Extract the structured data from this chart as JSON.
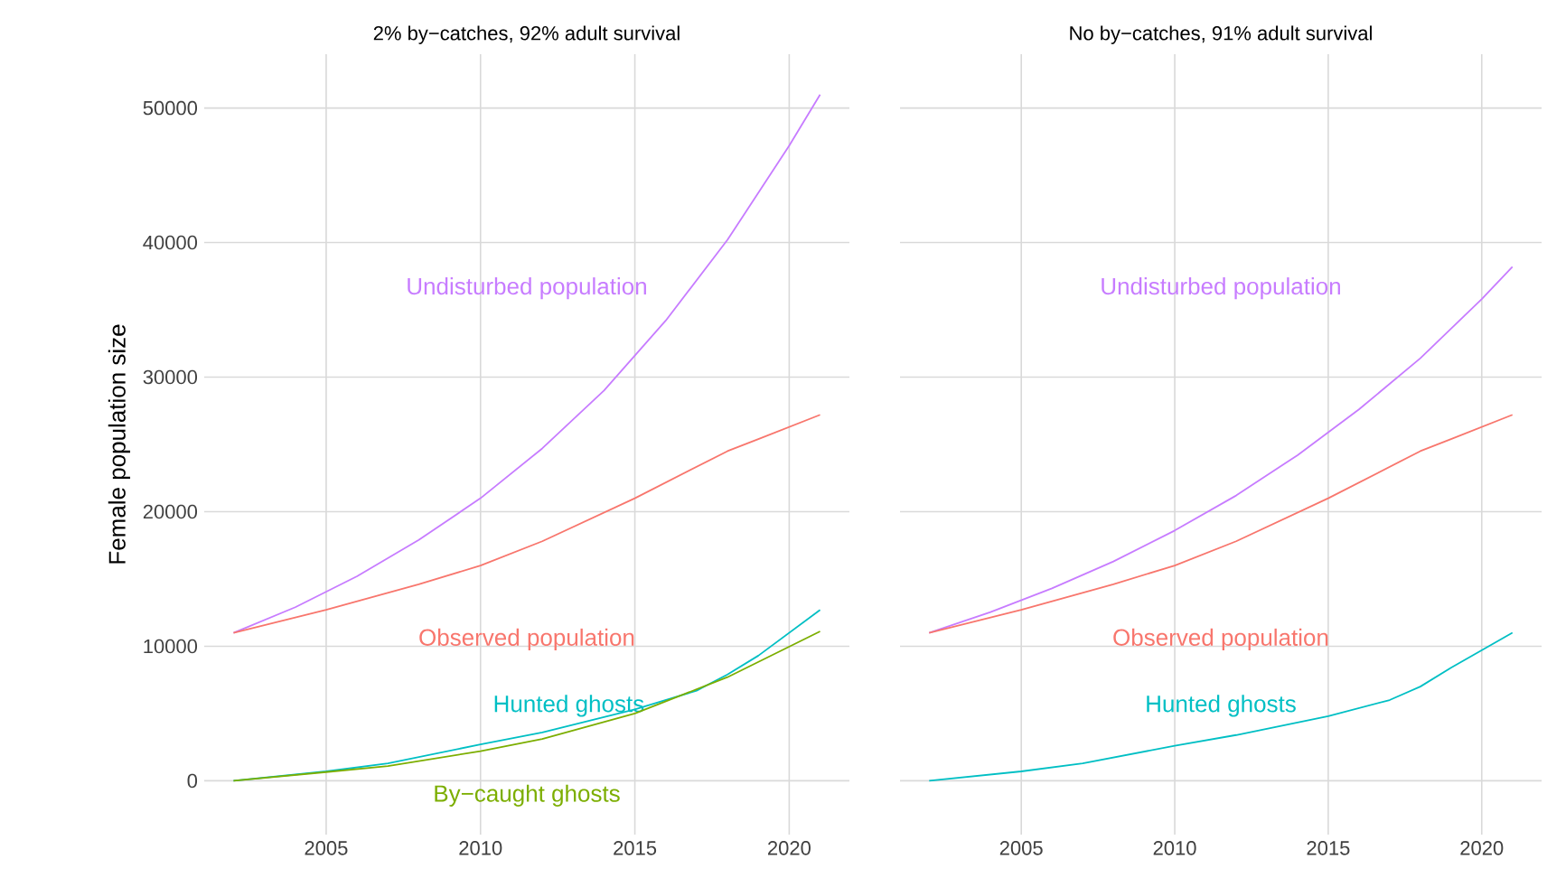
{
  "chart_data": [
    {
      "type": "line",
      "title": "2% by−catches, 92% adult survival",
      "ylabel": "Female population size",
      "xlim": [
        2001.05,
        2021.95
      ],
      "ylim": [
        -4000,
        54000
      ],
      "xticks": [
        2005,
        2010,
        2015,
        2020
      ],
      "yticks": [
        0,
        10000,
        20000,
        30000,
        40000,
        50000
      ],
      "grid": true,
      "series": [
        {
          "name": "Undisturbed population",
          "color": "#c77cff",
          "x": [
            2002,
            2004,
            2006,
            2008,
            2010,
            2012,
            2014,
            2016,
            2018,
            2020,
            2021
          ],
          "values": [
            11000,
            12900,
            15200,
            17900,
            21000,
            24700,
            29000,
            34200,
            40200,
            47200,
            51000
          ]
        },
        {
          "name": "Observed population",
          "color": "#f8766d",
          "x": [
            2002,
            2005,
            2008,
            2010,
            2012,
            2015,
            2018,
            2019,
            2021
          ],
          "values": [
            11000,
            12700,
            14600,
            16000,
            17800,
            21000,
            24500,
            25400,
            27200
          ]
        },
        {
          "name": "Hunted ghosts",
          "color": "#00bfc4",
          "x": [
            2002,
            2005,
            2007,
            2010,
            2012,
            2015,
            2017,
            2018,
            2019,
            2021
          ],
          "values": [
            0,
            700,
            1300,
            2700,
            3600,
            5300,
            6700,
            7900,
            9300,
            12700
          ]
        },
        {
          "name": "By−caught ghosts",
          "color": "#7cae00",
          "x": [
            2002,
            2005,
            2007,
            2010,
            2012,
            2015,
            2018,
            2021
          ],
          "values": [
            0,
            650,
            1100,
            2200,
            3100,
            5000,
            7700,
            11100
          ]
        }
      ]
    },
    {
      "type": "line",
      "title": "No by−catches, 91% adult survival",
      "xlim": [
        2001.05,
        2021.95
      ],
      "ylim": [
        -4000,
        54000
      ],
      "xticks": [
        2005,
        2010,
        2015,
        2020
      ],
      "yticks": [
        0,
        10000,
        20000,
        30000,
        40000,
        50000
      ],
      "grid": true,
      "tick_labels": "x",
      "series": [
        {
          "name": "Undisturbed population",
          "color": "#c77cff",
          "x": [
            2002,
            2004,
            2006,
            2008,
            2010,
            2012,
            2014,
            2016,
            2018,
            2020,
            2021
          ],
          "values": [
            11000,
            12540,
            14300,
            16300,
            18600,
            21200,
            24200,
            27600,
            31400,
            35800,
            38200
          ]
        },
        {
          "name": "Observed population",
          "color": "#f8766d",
          "x": [
            2002,
            2005,
            2008,
            2010,
            2012,
            2015,
            2018,
            2019,
            2021
          ],
          "values": [
            11000,
            12700,
            14600,
            16000,
            17800,
            21000,
            24500,
            25400,
            27200
          ]
        },
        {
          "name": "Hunted ghosts",
          "color": "#00bfc4",
          "x": [
            2002,
            2005,
            2007,
            2010,
            2012,
            2015,
            2017,
            2018,
            2019,
            2021
          ],
          "values": [
            0,
            700,
            1300,
            2600,
            3400,
            4800,
            6000,
            7000,
            8400,
            11000
          ]
        }
      ]
    }
  ]
}
